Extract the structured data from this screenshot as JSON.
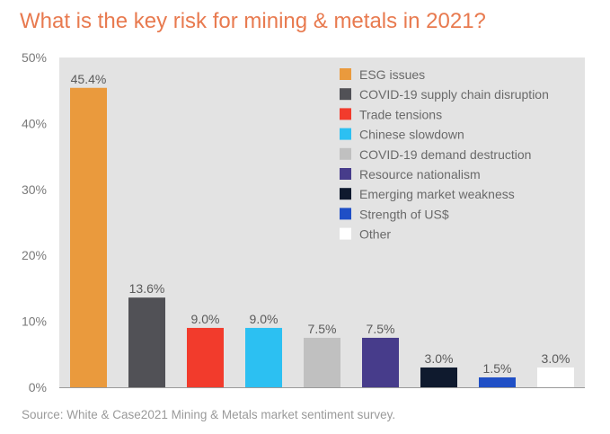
{
  "title": "What is the key risk for mining & metals in 2021?",
  "source": "Source: White & Case2021 Mining & Metals market sentiment survey.",
  "chart_data": {
    "type": "bar",
    "title": "What is the key risk for mining & metals in 2021?",
    "xlabel": "",
    "ylabel": "",
    "ylim": [
      0,
      50
    ],
    "y_ticks": [
      0,
      10,
      20,
      30,
      40,
      50
    ],
    "y_tick_labels": [
      "0%",
      "10%",
      "20%",
      "30%",
      "40%",
      "50%"
    ],
    "grid": false,
    "legend_position": "top-right",
    "categories": [
      "ESG issues",
      "COVID-19 supply chain disruption",
      "Trade tensions",
      "Chinese slowdown",
      "COVID-19 demand destruction",
      "Resource nationalism",
      "Emerging market weakness",
      "Strength of US$",
      "Other"
    ],
    "values": [
      45.4,
      13.6,
      9.0,
      9.0,
      7.5,
      7.5,
      3.0,
      1.5,
      3.0
    ],
    "data_labels": [
      "45.4%",
      "13.6%",
      "9.0%",
      "9.0%",
      "7.5%",
      "7.5%",
      "3.0%",
      "1.5%",
      "3.0%"
    ],
    "colors": [
      "#ea9a3d",
      "#515156",
      "#f23b2c",
      "#2cc0f2",
      "#c0c0c0",
      "#473c8b",
      "#0f1a2e",
      "#1f4fc6",
      "#ffffff"
    ],
    "plot_background": "#e3e3e3"
  }
}
